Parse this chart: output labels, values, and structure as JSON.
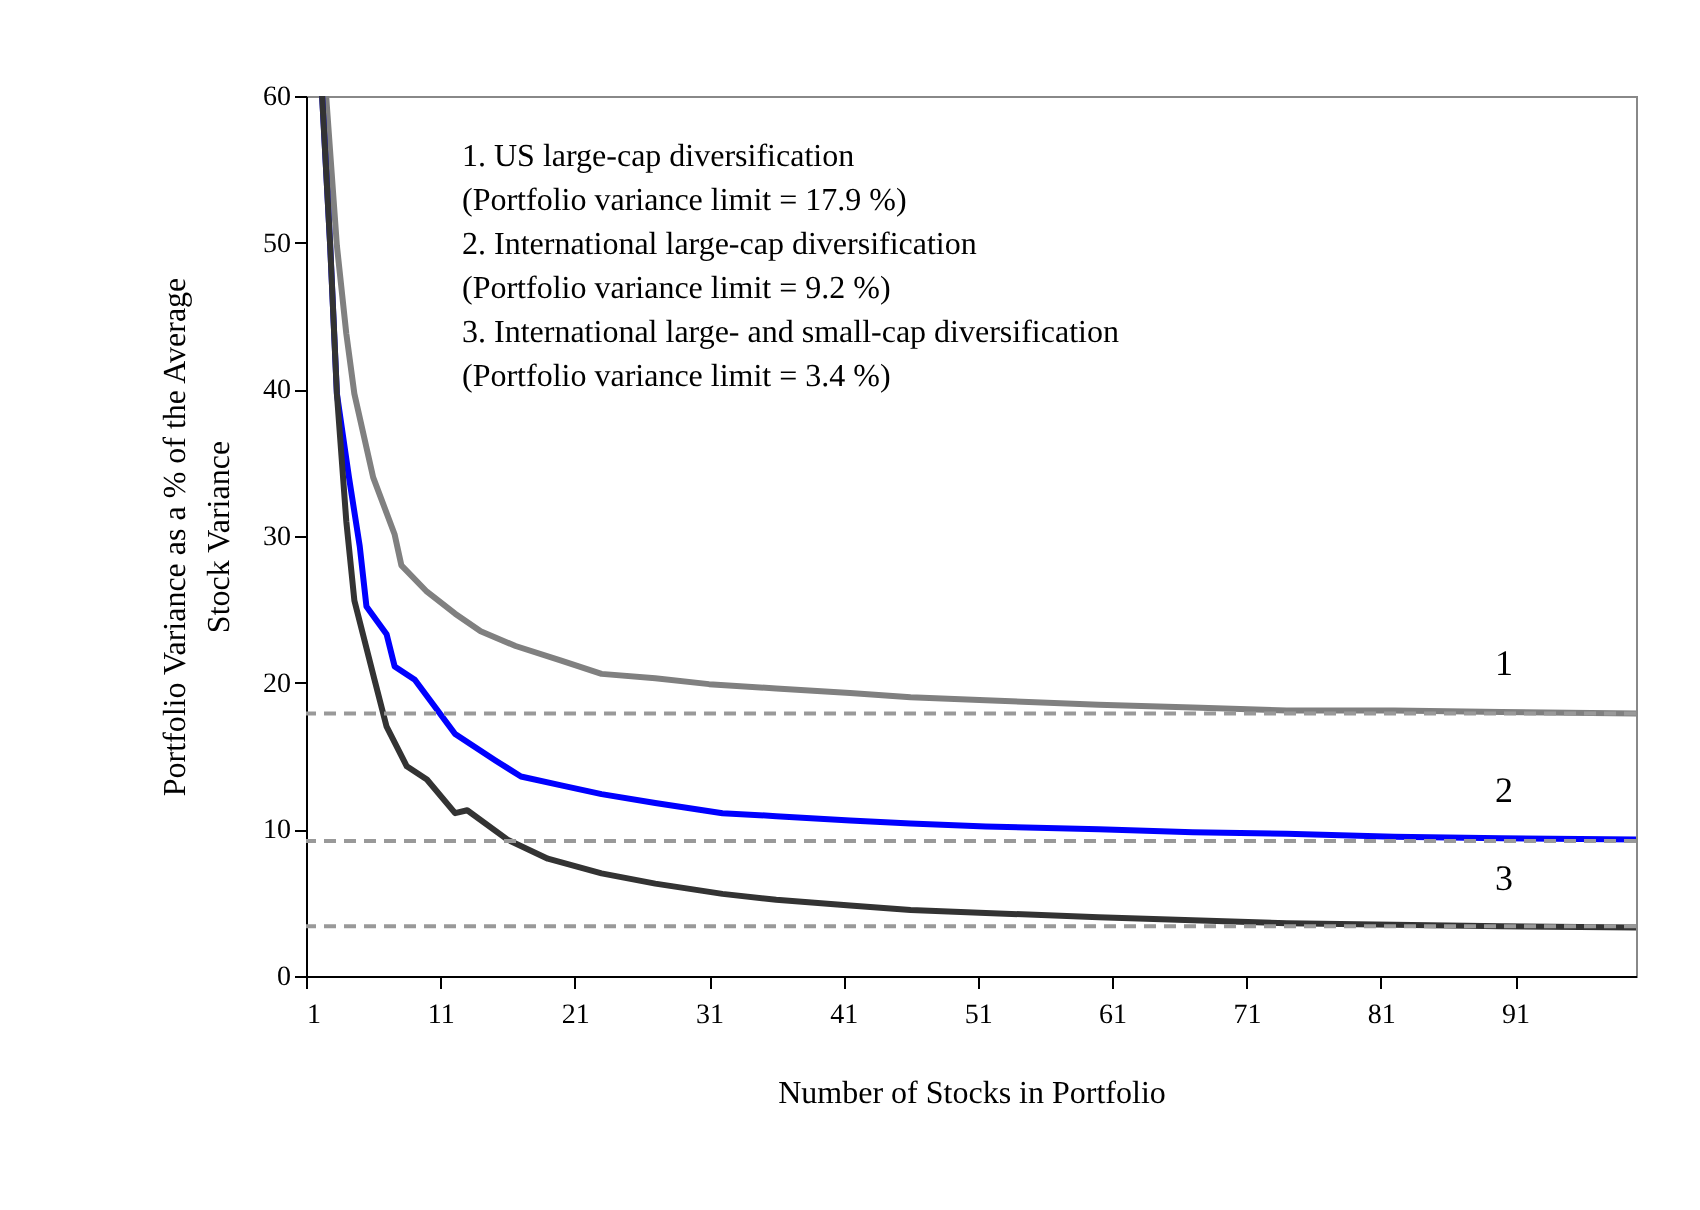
{
  "chart_data": {
    "type": "line",
    "xlabel": "Number of Stocks in Portfolio",
    "ylabel": "Portfolio Variance as a % of the Average\nStock Variance",
    "xlim": [
      1,
      100
    ],
    "xticks": [
      1,
      11,
      21,
      31,
      41,
      51,
      61,
      71,
      81,
      91
    ],
    "ylim": [
      0,
      60
    ],
    "yticks": [
      0,
      10,
      20,
      30,
      40,
      50,
      60
    ],
    "grid": false,
    "legend": false,
    "line_style": "solid",
    "marker": "none",
    "annotations": [
      "1. US large-cap diversification",
      "    (Portfolio variance limit = 17.9 %)",
      "2. International large-cap diversification",
      "    (Portfolio variance limit = 9.2 %)",
      "3. International large- and small-cap diversification",
      "    (Portfolio variance limit = 3.4 %)"
    ],
    "ref_lines": [
      {
        "axis": "y",
        "value": 17.9,
        "color": "#999999",
        "line_style": "dashed"
      },
      {
        "axis": "y",
        "value": 9.2,
        "color": "#999999",
        "line_style": "dashed"
      },
      {
        "axis": "y",
        "value": 3.4,
        "color": "#999999",
        "line_style": "dashed"
      }
    ],
    "series": [
      {
        "name": "1",
        "color": "#808080",
        "x": [
          2.5,
          3.3,
          4,
          4.6,
          6,
          7.6,
          8.1,
          10,
          12.1,
          14,
          16.6,
          20,
          23,
          27,
          31,
          36,
          41.5,
          46,
          51.6,
          60,
          67,
          74,
          82,
          90,
          100
        ],
        "values": [
          60,
          49.8,
          43.8,
          39.7,
          34,
          30.1,
          28,
          26.2,
          24.7,
          23.5,
          22.5,
          21.5,
          20.6,
          20.3,
          19.9,
          19.6,
          19.3,
          19,
          18.8,
          18.5,
          18.3,
          18.1,
          18.1,
          18,
          17.9
        ]
      },
      {
        "name": "2",
        "color": "#0000ff",
        "x": [
          2.2,
          2.8,
          3.3,
          4.2,
          5,
          5.5,
          7,
          7.6,
          9.1,
          12.1,
          15.1,
          17,
          20,
          23,
          27,
          32,
          36,
          41.5,
          46,
          51.6,
          60,
          67,
          74,
          82,
          90,
          100
        ],
        "values": [
          60,
          49.8,
          39.7,
          34,
          29.3,
          25.2,
          23.3,
          21.1,
          20.2,
          16.5,
          14.7,
          13.6,
          13,
          12.4,
          11.8,
          11.1,
          10.9,
          10.6,
          10.4,
          10.2,
          10,
          9.8,
          9.7,
          9.5,
          9.4,
          9.3
        ]
      },
      {
        "name": "3",
        "color": "#333333",
        "x": [
          2.2,
          2.8,
          3.3,
          4,
          4.6,
          6.1,
          7,
          8.5,
          10,
          12.1,
          13,
          16,
          19,
          23,
          27,
          32,
          36,
          41.5,
          46,
          51.6,
          60,
          67,
          74,
          82,
          90,
          100
        ],
        "values": [
          60,
          49.8,
          39.7,
          31,
          25.6,
          20.2,
          17,
          14.3,
          13.4,
          11.1,
          11.3,
          9.3,
          8,
          7,
          6.3,
          5.6,
          5.2,
          4.8,
          4.5,
          4.3,
          4,
          3.8,
          3.6,
          3.5,
          3.4,
          3.3
        ]
      }
    ]
  }
}
